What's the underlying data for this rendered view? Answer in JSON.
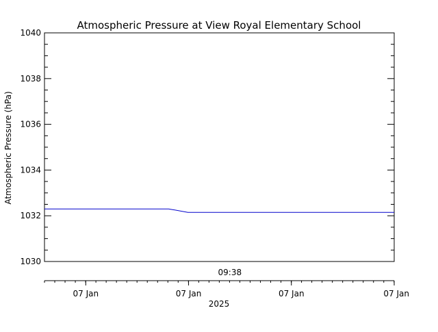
{
  "chart_data": {
    "type": "line",
    "title": "Atmospheric Pressure at View Royal Elementary School",
    "ylabel": "Atmospheric Pressure (hPa)",
    "ylim": [
      1030,
      1040
    ],
    "yticks": [
      1030,
      1032,
      1034,
      1036,
      1038,
      1040
    ],
    "y_minor_step": 0.5,
    "xlim": [
      0,
      1
    ],
    "series": [
      {
        "color": "#0000cc",
        "points": [
          {
            "x": 0.0,
            "y": 1032.3
          },
          {
            "x": 0.355,
            "y": 1032.3
          },
          {
            "x": 0.41,
            "y": 1032.15
          },
          {
            "x": 1.0,
            "y": 1032.15
          }
        ]
      }
    ],
    "time_marker": {
      "label": "09:38",
      "x": 0.53
    },
    "x_axis": {
      "ticks": [
        {
          "x": 0.118,
          "label": "07 Jan"
        },
        {
          "x": 0.412,
          "label": "07 Jan"
        },
        {
          "x": 0.706,
          "label": "07 Jan"
        },
        {
          "x": 1.0,
          "label": "07 Jan"
        }
      ],
      "minor_step": 0.0294,
      "year_label": "2025"
    }
  }
}
